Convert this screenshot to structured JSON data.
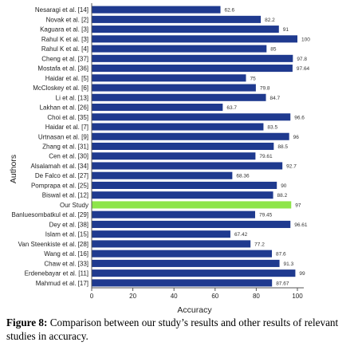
{
  "chart_data": {
    "type": "bar",
    "orientation": "horizontal",
    "xlabel": "Accuracy",
    "ylabel": "Authors",
    "xlim": [
      0,
      100
    ],
    "xticks": [
      "0",
      "20",
      "40",
      "60",
      "80",
      "100"
    ],
    "grid": false,
    "categories": [
      "Nesaragi et al. [14]",
      "Novak et al. [2]",
      "Kaguara et al. [3]",
      "Rahul K et al. [3]",
      "Rahul K et al. [4]",
      "Cheng et al. [37]",
      "Mostafa et al. [36]",
      "Haidar et al. [5]",
      "McCloskey et al. [6]",
      "Li et al. [13]",
      "Lakhan et al. [26]",
      "Choi et al. [35]",
      "Haidar et al. [7]",
      "Urtnasan et al. [9]",
      "Zhang et al. [31]",
      "Cen et al. [30]",
      "Alsalamah et al. [34]",
      "De Falco et al. [27]",
      "Pomprapa et al. [25]",
      "Biswal et al. [12]",
      "Our Study",
      "Banluesombatkul et al. [29]",
      "Dey et al. [38]",
      "Islam et al. [15]",
      "Van Steenkiste et al. [28]",
      "Wang et al. [16]",
      "Chaw et al. [33]",
      "Erdenebayar et al. [11]",
      "Mahmud et al. [17]"
    ],
    "values": [
      62.6,
      82.2,
      91,
      100,
      85,
      97.8,
      97.64,
      75,
      79.8,
      84.7,
      63.7,
      96.6,
      83.5,
      96,
      88.5,
      79.61,
      92.7,
      68.36,
      90,
      88.2,
      97,
      79.45,
      96.61,
      67.42,
      77.2,
      87.6,
      91.3,
      99,
      87.67
    ],
    "value_labels": [
      "62.6",
      "82.2",
      "91",
      "100",
      "85",
      "97.8",
      "97.64",
      "75",
      "79.8",
      "84.7",
      "63.7",
      "96.6",
      "83.5",
      "96",
      "88.5",
      "79.61",
      "92.7",
      "68.36",
      "90",
      "88.2",
      "97",
      "79.45",
      "96.61",
      "67.42",
      "77.2",
      "87.6",
      "91.3",
      "99",
      "87.67"
    ],
    "colors": {
      "bar": "#1f3a8f",
      "highlight": "#8ee54a",
      "axis": "#555555"
    },
    "highlight_category": "Our Study"
  },
  "caption": {
    "label": "Figure 8:",
    "text": " Comparison between our study’s results and other results of relevant studies in accuracy."
  }
}
